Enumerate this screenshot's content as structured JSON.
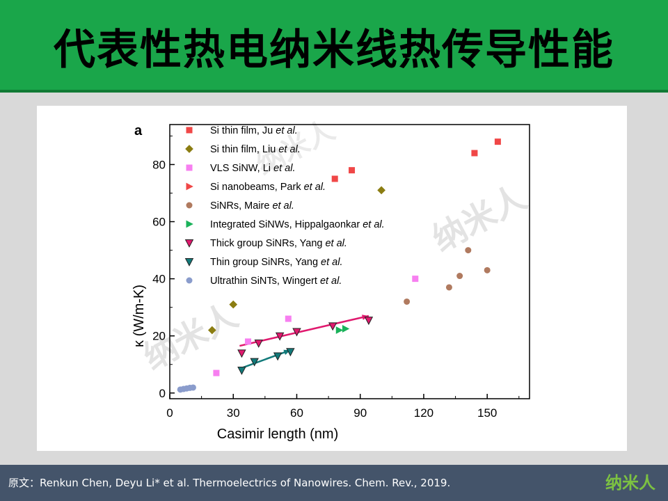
{
  "slide": {
    "title": "代表性热电纳米线热传导性能",
    "footer_text": "原文：Renkun Chen, Deyu Li* et al. Thermoelectrics of Nanowires. Chem. Rev., 2019.",
    "footer_logo": "纳米人",
    "watermark": "纳米人",
    "colors": {
      "title_bg": "#1aa64a",
      "footer_bg": "#44546a",
      "logo": "#7cc142"
    }
  },
  "chart_data": {
    "type": "scatter",
    "panel_label": "a",
    "xlabel": "Casimir length (nm)",
    "ylabel": "κ (W/m-K)",
    "xlim": [
      0,
      170
    ],
    "ylim": [
      -2,
      94
    ],
    "xticks": [
      0,
      30,
      60,
      90,
      120,
      150
    ],
    "yticks": [
      0,
      20,
      40,
      60,
      80
    ],
    "series": [
      {
        "name": "Si thin film, Ju et al.",
        "label_prefix": "Si thin film, Ju ",
        "label_italic": "et al.",
        "marker": "square",
        "color": "#f04747",
        "points": [
          [
            78,
            75
          ],
          [
            86,
            78
          ],
          [
            144,
            84
          ],
          [
            155,
            88
          ]
        ]
      },
      {
        "name": "Si thin film, Liu et al.",
        "label_prefix": "Si thin film, Liu ",
        "label_italic": "et al.",
        "marker": "diamond",
        "color": "#8b7d12",
        "points": [
          [
            20,
            22
          ],
          [
            30,
            31
          ],
          [
            100,
            71
          ]
        ]
      },
      {
        "name": "VLS SiNW, Li et al.",
        "label_prefix": "VLS SiNW, Li ",
        "label_italic": "et al.",
        "marker": "square",
        "color": "#f77ff0",
        "points": [
          [
            22,
            7
          ],
          [
            37,
            18
          ],
          [
            56,
            26
          ],
          [
            116,
            40
          ]
        ]
      },
      {
        "name": "Si nanobeams, Park et al.",
        "label_prefix": "Si nanobeams, Park ",
        "label_italic": "et al.",
        "marker": "triangle-right",
        "color": "#f04747",
        "points": []
      },
      {
        "name": "SiNRs, Maire et al.",
        "label_prefix": "SiNRs, Maire ",
        "label_italic": "et al.",
        "marker": "circle",
        "color": "#b07a5f",
        "points": [
          [
            112,
            32
          ],
          [
            132,
            37
          ],
          [
            137,
            41
          ],
          [
            141,
            50
          ],
          [
            150,
            43
          ]
        ]
      },
      {
        "name": "Integrated SiNWs, Hippalgaonkar et al.",
        "label_prefix": "Integrated SiNWs, Hippalgaonkar ",
        "label_italic": "et al.",
        "marker": "triangle-right",
        "color": "#1ab25a",
        "points": [
          [
            80,
            22
          ],
          [
            83,
            22.5
          ]
        ]
      },
      {
        "name": "Thick group SiNRs, Yang et al.",
        "label_prefix": "Thick group SiNRs, Yang ",
        "label_italic": "et al.",
        "marker": "triangle-down",
        "color": "#e0196e",
        "points": [
          [
            34,
            14
          ],
          [
            42,
            17.5
          ],
          [
            52,
            20
          ],
          [
            60,
            21.5
          ],
          [
            77,
            23.5
          ],
          [
            94,
            25.5
          ]
        ]
      },
      {
        "name": "Thin group SiNRs, Yang et al.",
        "label_prefix": "Thin group SiNRs, Yang ",
        "label_italic": "et al.",
        "marker": "triangle-down",
        "color": "#127a7a",
        "points": [
          [
            34,
            8
          ],
          [
            40,
            11
          ],
          [
            51,
            13
          ],
          [
            57,
            14.5
          ]
        ]
      },
      {
        "name": "Ultrathin SiNTs, Wingert et al.",
        "label_prefix": "Ultrathin SiNTs, Wingert ",
        "label_italic": "et al.",
        "marker": "circle",
        "color": "#8a9ccc",
        "points": [
          [
            5,
            1.2
          ],
          [
            6.5,
            1.4
          ],
          [
            8,
            1.6
          ],
          [
            9.5,
            1.8
          ],
          [
            11,
            1.9
          ]
        ]
      }
    ],
    "fit_lines": [
      {
        "name": "Thick group trend",
        "color": "#e0196e",
        "points": [
          [
            33,
            16.5
          ],
          [
            94,
            27
          ]
        ]
      },
      {
        "name": "Thin group trend",
        "color": "#127a7a",
        "points": [
          [
            33,
            8.5
          ],
          [
            57,
            15
          ]
        ]
      }
    ]
  }
}
